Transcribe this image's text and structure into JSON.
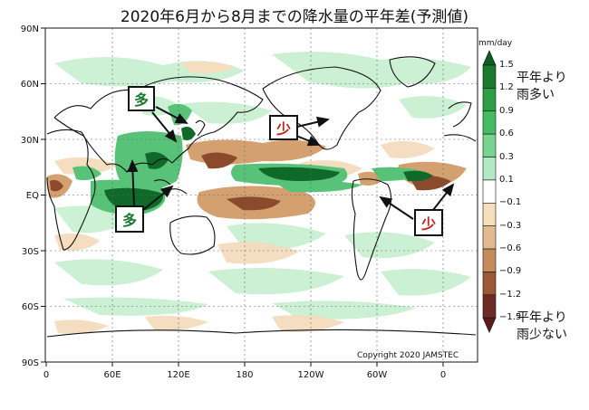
{
  "title": "2020年6月から8月までの降水量の平年差(予測値)",
  "map": {
    "lat_labels": [
      "90N",
      "60N",
      "30N",
      "EQ",
      "30S",
      "60S",
      "90S"
    ],
    "lon_labels": [
      "0",
      "60E",
      "120E",
      "180",
      "120W",
      "60W",
      "0"
    ],
    "copyright": "Copyright 2020 JAMSTEC"
  },
  "callouts": [
    {
      "label": "多",
      "color": "#1a7a30"
    },
    {
      "label": "多",
      "color": "#1a7a30"
    },
    {
      "label": "少",
      "color": "#c0281e"
    },
    {
      "label": "少",
      "color": "#c0281e"
    }
  ],
  "colorbar": {
    "unit": "mm/day",
    "ticks": [
      "1.5",
      "1.2",
      "0.9",
      "0.6",
      "0.3",
      "0.1",
      "−0.1",
      "−0.3",
      "−0.6",
      "−0.9",
      "−1.2",
      "−1.5"
    ],
    "colors": [
      "#0f5f25",
      "#1a7a30",
      "#2e9e46",
      "#44bb62",
      "#78d390",
      "#b4e8c2",
      "#ffffff",
      "#f6ddbc",
      "#e2ba90",
      "#c48c5a",
      "#9c5a34",
      "#6e2a24",
      "#5a1a1c"
    ],
    "wet_label_1": "平年より",
    "wet_label_2": "雨多い",
    "dry_label_1": "平年より",
    "dry_label_2": "雨少ない"
  }
}
